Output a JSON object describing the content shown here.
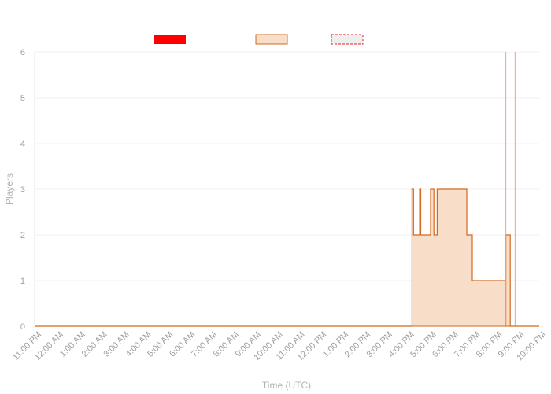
{
  "chart_data": {
    "type": "area",
    "xlabel": "Time (UTC)",
    "ylabel": "Players",
    "ylim": [
      0,
      6
    ],
    "y_ticks": [
      "0",
      "1",
      "2",
      "3",
      "4",
      "5",
      "6"
    ],
    "x_ticks": [
      "11:00 PM",
      "12:00 AM",
      "1:00 AM",
      "2:00 AM",
      "3:00 AM",
      "4:00 AM",
      "5:00 AM",
      "6:00 AM",
      "7:00 AM",
      "8:00 AM",
      "9:00 AM",
      "10:00 AM",
      "11:00 AM",
      "12:00 PM",
      "1:00 PM",
      "2:00 PM",
      "3:00 PM",
      "4:00 PM",
      "5:00 PM",
      "6:00 PM",
      "7:00 PM",
      "8:00 PM",
      "9:00 PM",
      "10:00 PM"
    ],
    "x_unit": "hours after 11:00 PM",
    "grid": true,
    "legend_position": "top",
    "series": [
      {
        "style": "bar",
        "color": "#ff0000",
        "values": []
      },
      {
        "style": "step-area",
        "color": "#d2691e",
        "fill": "#f8ddc9",
        "points": [
          [
            0,
            0
          ],
          [
            17.2,
            0
          ],
          [
            17.2,
            3
          ],
          [
            17.27,
            3
          ],
          [
            17.27,
            2
          ],
          [
            17.55,
            2
          ],
          [
            17.55,
            3
          ],
          [
            17.6,
            3
          ],
          [
            17.6,
            2
          ],
          [
            18.05,
            2
          ],
          [
            18.05,
            3
          ],
          [
            18.2,
            3
          ],
          [
            18.2,
            2
          ],
          [
            18.35,
            2
          ],
          [
            18.35,
            3
          ],
          [
            19.7,
            3
          ],
          [
            19.7,
            2
          ],
          [
            19.95,
            2
          ],
          [
            19.95,
            1
          ],
          [
            21.45,
            1
          ],
          [
            21.45,
            0
          ],
          [
            21.48,
            0
          ],
          [
            21.48,
            2
          ],
          [
            21.68,
            2
          ],
          [
            21.68,
            0
          ],
          [
            23,
            0
          ]
        ]
      },
      {
        "style": "dashed-band",
        "color": "#e8202a",
        "fill": "#eeeeee",
        "values": []
      }
    ],
    "vertical_markers": [
      21.48,
      21.9
    ]
  }
}
